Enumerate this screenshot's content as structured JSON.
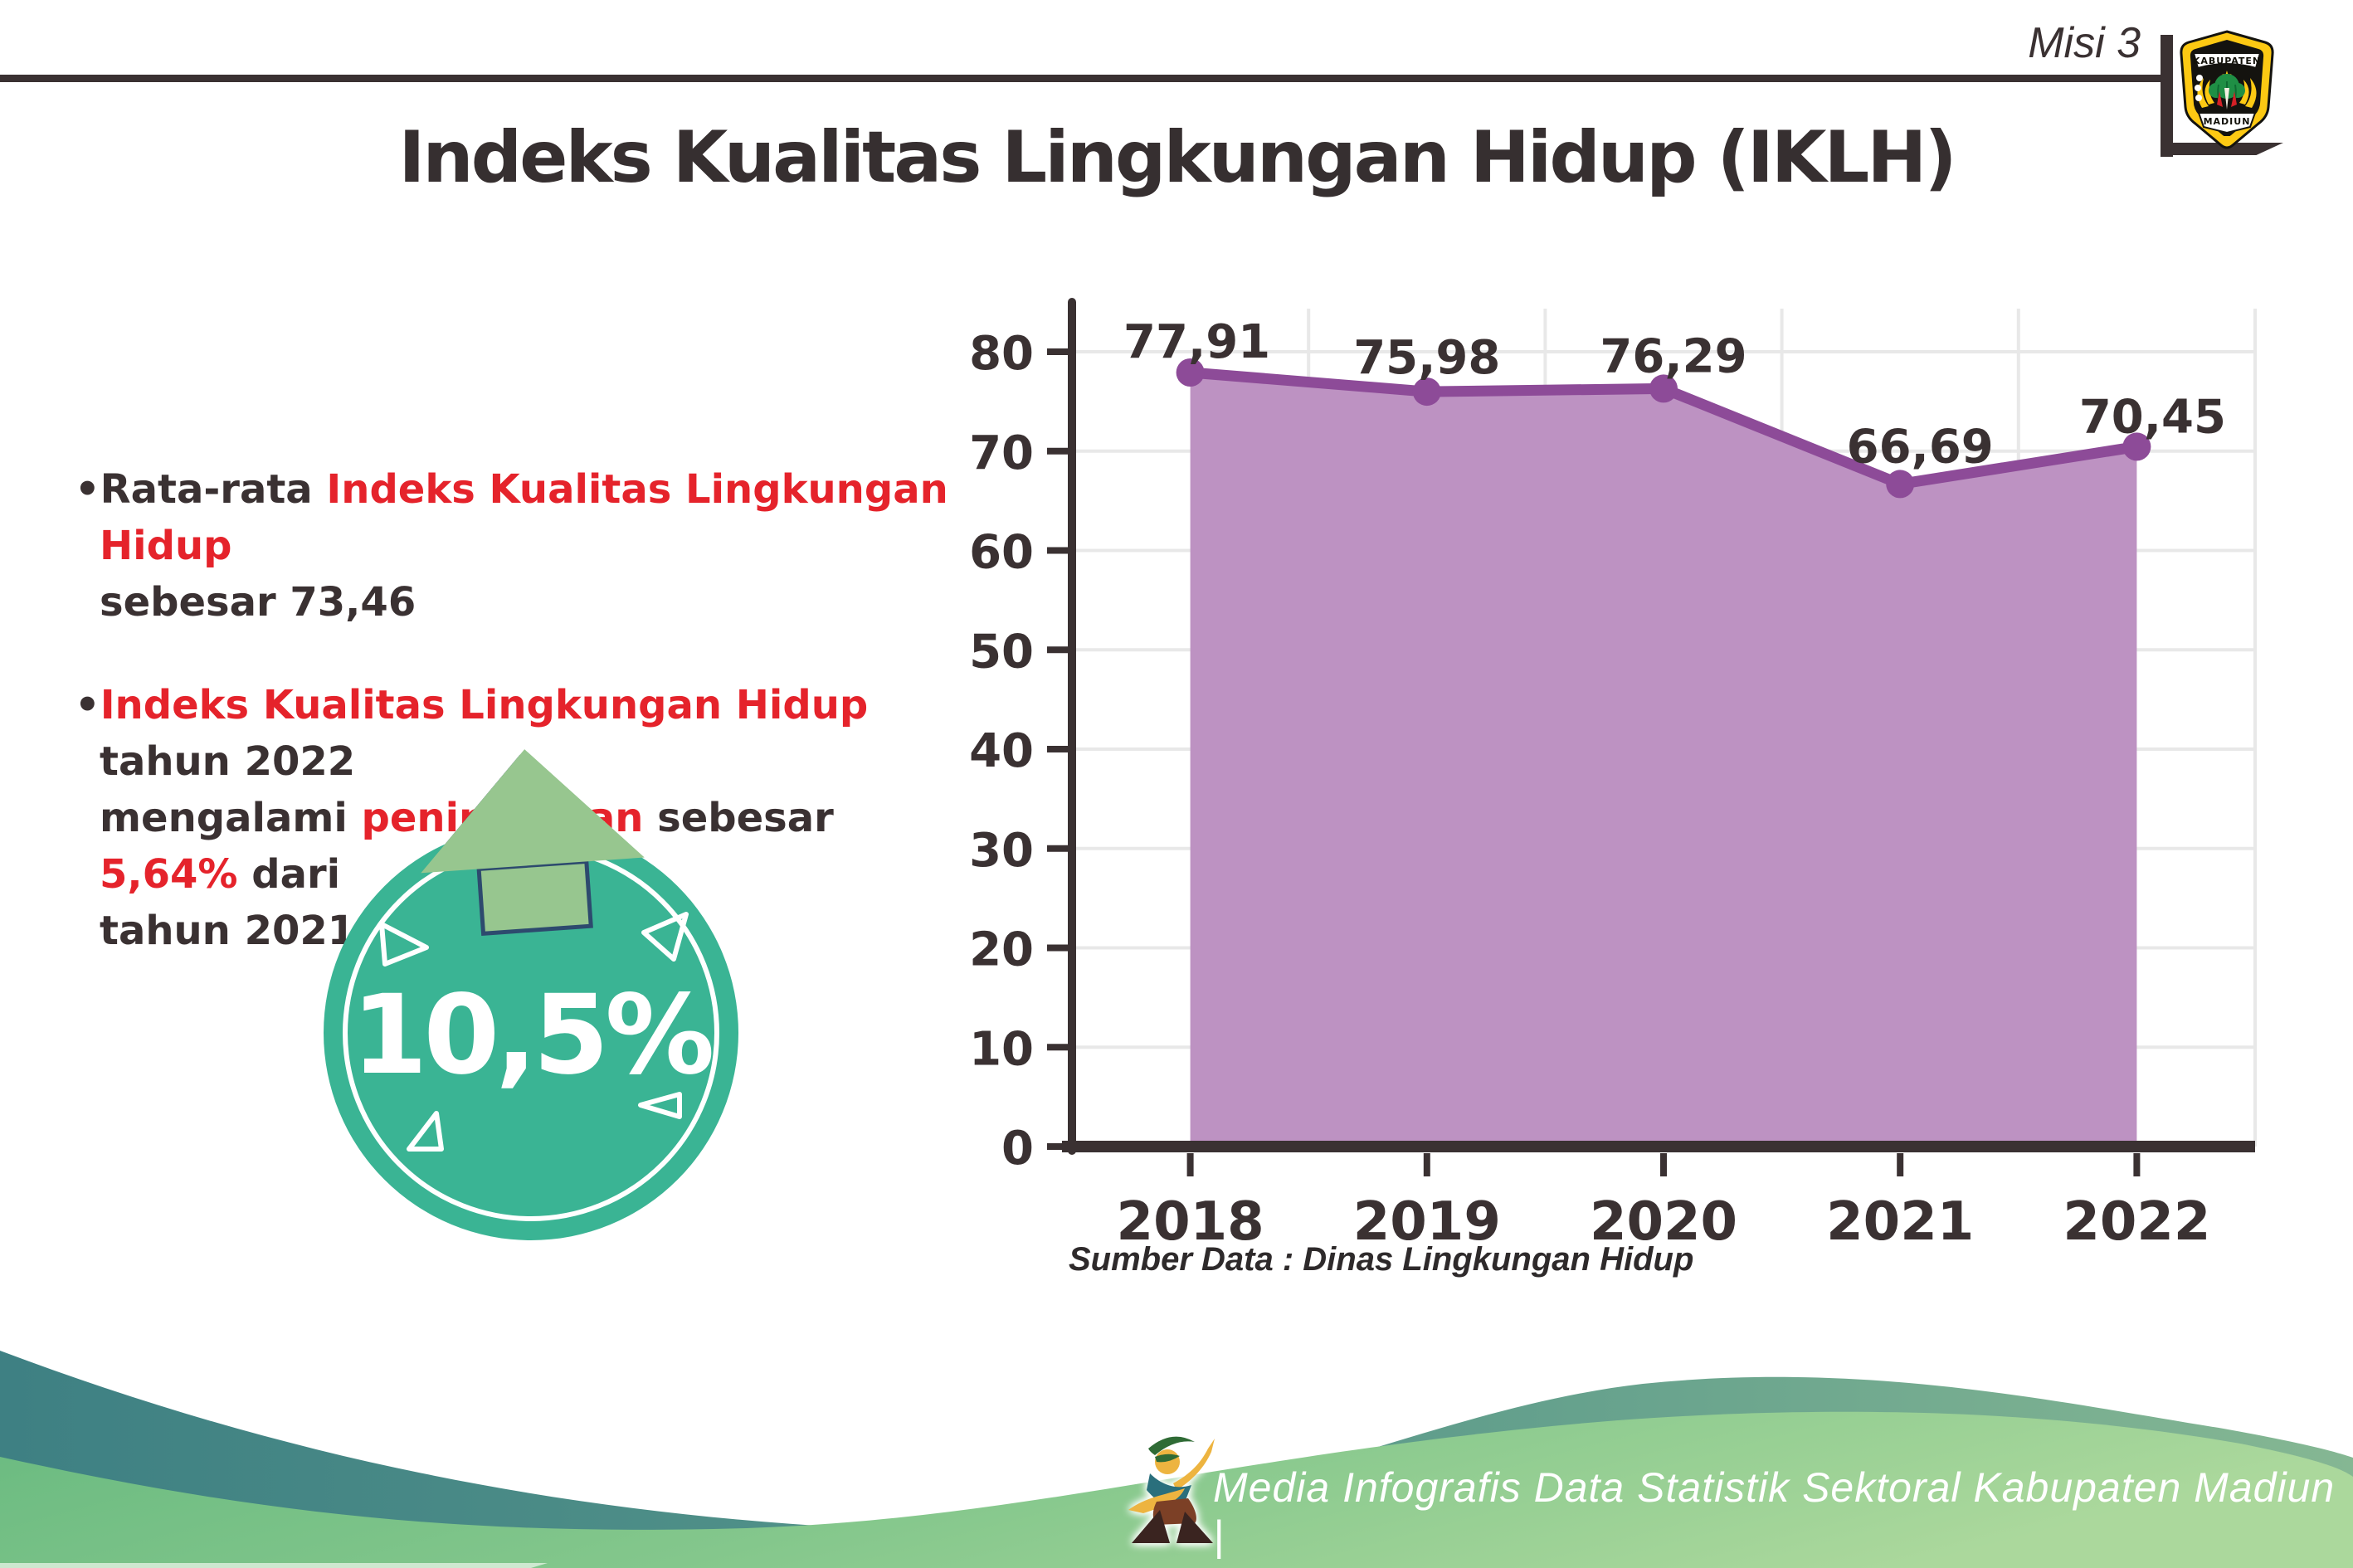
{
  "header": {
    "misi": "Misi 3",
    "title": "Indeks Kualitas Lingkungan Hidup (IKLH)",
    "logo": {
      "top_text": "KABUPATEN",
      "bottom_text": "MADIUN"
    }
  },
  "insights": {
    "bullet1": {
      "segments": [
        {
          "t": "•Rata-rata ",
          "c": "dark"
        },
        {
          "t": "Indeks Kualitas Lingkungan Hidup",
          "c": "red"
        },
        {
          "t": "\nsebesar 73,46",
          "c": "dark"
        }
      ]
    },
    "bullet2": {
      "segments": [
        {
          "t": "•",
          "c": "dark"
        },
        {
          "t": "Indeks Kualitas Lingkungan Hidup",
          "c": "red"
        },
        {
          "t": " tahun 2022\nmengalami ",
          "c": "dark"
        },
        {
          "t": "peningkatan",
          "c": "red"
        },
        {
          "t": " sebesar ",
          "c": "dark"
        },
        {
          "t": "5,64%",
          "c": "red"
        },
        {
          "t": " dari\ntahun 2021",
          "c": "dark"
        }
      ]
    }
  },
  "badge": {
    "value": "10,5%",
    "icon": "up-arrow-icon"
  },
  "chart_data": {
    "type": "area",
    "title": "",
    "xlabel": "",
    "ylabel": "",
    "categories": [
      "2018",
      "2019",
      "2020",
      "2021",
      "2022"
    ],
    "values": [
      77.91,
      75.98,
      76.29,
      66.69,
      70.45
    ],
    "value_labels": [
      "77,91",
      "75,98",
      "76,29",
      "66,69",
      "70,45"
    ],
    "ylim": [
      0,
      85
    ],
    "yticks": [
      0,
      10,
      20,
      30,
      40,
      50,
      60,
      70,
      80
    ],
    "grid": true,
    "legend": "none",
    "line_color": "#8d4b98",
    "fill_color": "#bd92c2",
    "grid_color": "#e8e8e8",
    "axis_color": "#3a3132"
  },
  "source_note": "Sumber Data : Dinas Lingkungan Hidup",
  "footer": {
    "caption": "Media Infografis Data Statistik Sektoral Kabupaten Madiun |"
  },
  "colors": {
    "dark_text": "#3a3132",
    "accent_red": "#e5232b",
    "badge_teal": "#3ab494",
    "arrow_green": "#97c68f",
    "arrow_outline_navy": "#2d4a6e",
    "wave_teal_dark": "#3e8083",
    "wave_teal_light": "#85b793",
    "wave_green_dark": "#69ba80",
    "wave_green_light": "#abd89c"
  }
}
